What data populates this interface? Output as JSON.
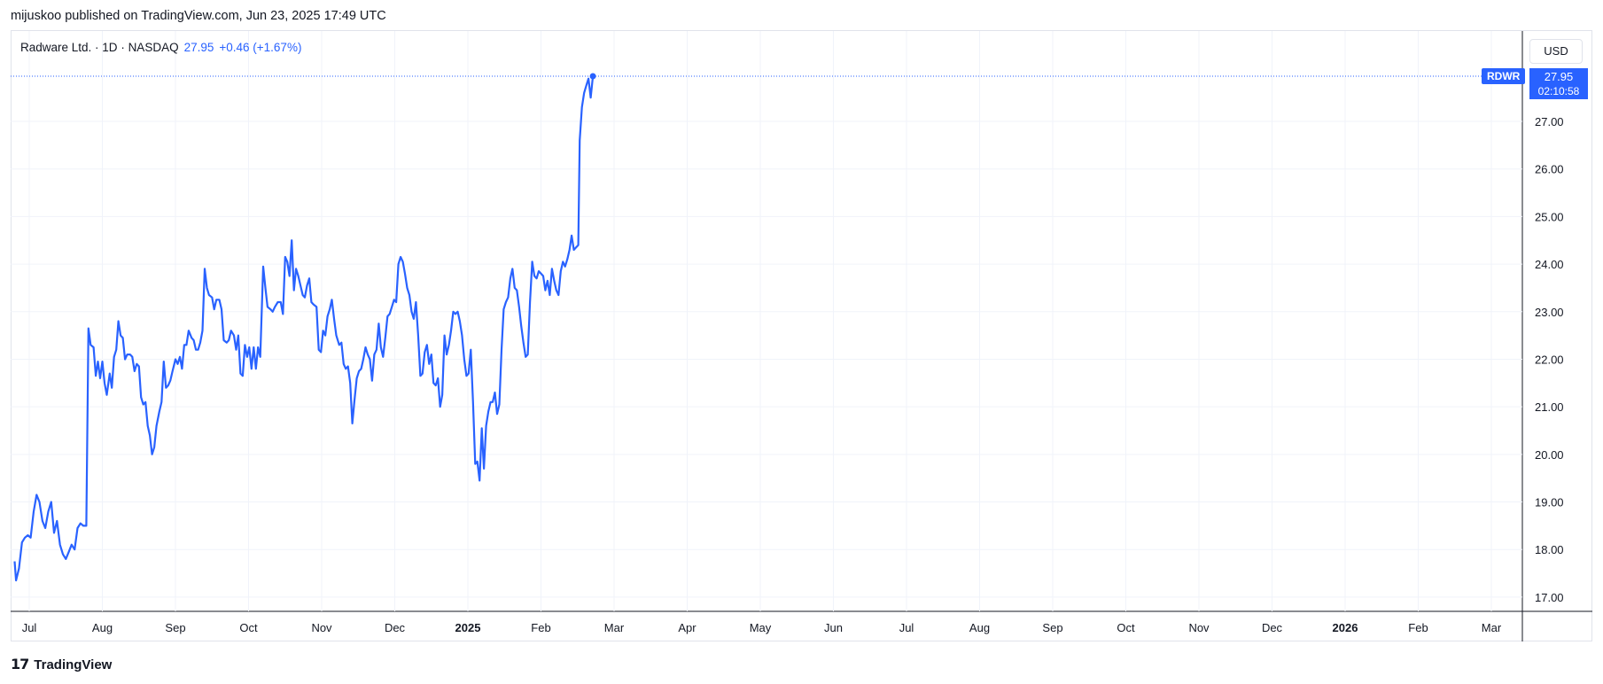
{
  "header": {
    "publisher_line": "mijuskoo published on TradingView.com, Jun 23, 2025 17:49 UTC"
  },
  "legend": {
    "name": "Radware Ltd.",
    "separator1": " · ",
    "interval": "1D",
    "separator2": " · ",
    "exchange": "NASDAQ",
    "last": "27.95",
    "change": "+0.46 (+1.67%)"
  },
  "price_scale": {
    "currency": "USD",
    "symbol_badge": "RDWR",
    "countdown": "02:10:58"
  },
  "footer": {
    "brand": "TradingView"
  },
  "colors": {
    "line": "#2962ff",
    "grid": "#f0f3fa",
    "axis_text": "#131722"
  },
  "chart_data": {
    "type": "line",
    "title": "Radware Ltd. · 1D · NASDAQ",
    "ylim": [
      16.7,
      28.9
    ],
    "y_ticks": [
      "17.00",
      "18.00",
      "19.00",
      "20.00",
      "21.00",
      "22.00",
      "23.00",
      "24.00",
      "25.00",
      "26.00",
      "27.00"
    ],
    "x_ticks": [
      {
        "label": "Jul",
        "t": 0.0
      },
      {
        "label": "Aug",
        "t": 1.0
      },
      {
        "label": "Sep",
        "t": 2.0
      },
      {
        "label": "Oct",
        "t": 3.0
      },
      {
        "label": "Nov",
        "t": 4.0
      },
      {
        "label": "Dec",
        "t": 5.0
      },
      {
        "label": "2025",
        "t": 6.0,
        "bold": true
      },
      {
        "label": "Feb",
        "t": 7.0
      },
      {
        "label": "Mar",
        "t": 8.0
      },
      {
        "label": "Apr",
        "t": 9.0
      },
      {
        "label": "May",
        "t": 10.0
      },
      {
        "label": "Jun",
        "t": 11.0
      },
      {
        "label": "Jul",
        "t": 12.0
      },
      {
        "label": "Aug",
        "t": 13.0
      },
      {
        "label": "Sep",
        "t": 14.0
      },
      {
        "label": "Oct",
        "t": 15.0
      },
      {
        "label": "Nov",
        "t": 16.0
      },
      {
        "label": "Dec",
        "t": 17.0
      },
      {
        "label": "2026",
        "t": 18.0,
        "bold": true
      },
      {
        "label": "Feb",
        "t": 19.0
      },
      {
        "label": "Mar",
        "t": 20.0
      }
    ],
    "series": [
      {
        "values": [
          [
            -0.2,
            17.75
          ],
          [
            -0.18,
            17.35
          ],
          [
            -0.14,
            17.6
          ],
          [
            -0.1,
            18.15
          ],
          [
            -0.06,
            18.25
          ],
          [
            -0.02,
            18.3
          ],
          [
            0.02,
            18.25
          ],
          [
            0.06,
            18.8
          ],
          [
            0.1,
            19.15
          ],
          [
            0.14,
            19.0
          ],
          [
            0.18,
            18.6
          ],
          [
            0.22,
            18.45
          ],
          [
            0.26,
            18.8
          ],
          [
            0.3,
            19.0
          ],
          [
            0.34,
            18.35
          ],
          [
            0.38,
            18.6
          ],
          [
            0.42,
            18.1
          ],
          [
            0.46,
            17.9
          ],
          [
            0.5,
            17.8
          ],
          [
            0.54,
            17.95
          ],
          [
            0.58,
            18.1
          ],
          [
            0.62,
            18.0
          ],
          [
            0.66,
            18.45
          ],
          [
            0.7,
            18.55
          ],
          [
            0.74,
            18.5
          ],
          [
            0.78,
            18.5
          ],
          [
            0.81,
            22.65
          ],
          [
            0.84,
            22.3
          ],
          [
            0.88,
            22.25
          ],
          [
            0.91,
            21.65
          ],
          [
            0.94,
            21.95
          ],
          [
            0.97,
            21.6
          ],
          [
            1.0,
            21.95
          ],
          [
            1.03,
            21.5
          ],
          [
            1.06,
            21.25
          ],
          [
            1.1,
            21.7
          ],
          [
            1.13,
            21.4
          ],
          [
            1.16,
            22.05
          ],
          [
            1.19,
            22.2
          ],
          [
            1.22,
            22.8
          ],
          [
            1.25,
            22.5
          ],
          [
            1.28,
            22.45
          ],
          [
            1.31,
            22.0
          ],
          [
            1.34,
            22.1
          ],
          [
            1.38,
            22.1
          ],
          [
            1.41,
            22.05
          ],
          [
            1.44,
            21.75
          ],
          [
            1.47,
            21.9
          ],
          [
            1.5,
            21.85
          ],
          [
            1.53,
            21.2
          ],
          [
            1.56,
            21.05
          ],
          [
            1.59,
            21.1
          ],
          [
            1.62,
            20.6
          ],
          [
            1.65,
            20.4
          ],
          [
            1.68,
            20.0
          ],
          [
            1.71,
            20.15
          ],
          [
            1.74,
            20.6
          ],
          [
            1.78,
            20.9
          ],
          [
            1.81,
            21.1
          ],
          [
            1.84,
            21.95
          ],
          [
            1.87,
            21.4
          ],
          [
            1.9,
            21.45
          ],
          [
            1.93,
            21.55
          ],
          [
            1.96,
            21.75
          ],
          [
            2.0,
            22.0
          ],
          [
            2.03,
            21.9
          ],
          [
            2.06,
            22.05
          ],
          [
            2.09,
            21.8
          ],
          [
            2.12,
            22.3
          ],
          [
            2.15,
            22.3
          ],
          [
            2.18,
            22.6
          ],
          [
            2.22,
            22.45
          ],
          [
            2.25,
            22.4
          ],
          [
            2.28,
            22.2
          ],
          [
            2.31,
            22.2
          ],
          [
            2.34,
            22.35
          ],
          [
            2.37,
            22.6
          ],
          [
            2.4,
            23.9
          ],
          [
            2.43,
            23.5
          ],
          [
            2.46,
            23.35
          ],
          [
            2.5,
            23.3
          ],
          [
            2.53,
            23.05
          ],
          [
            2.56,
            23.25
          ],
          [
            2.6,
            23.25
          ],
          [
            2.63,
            23.05
          ],
          [
            2.66,
            22.4
          ],
          [
            2.7,
            22.35
          ],
          [
            2.73,
            22.4
          ],
          [
            2.76,
            22.6
          ],
          [
            2.8,
            22.5
          ],
          [
            2.83,
            22.2
          ],
          [
            2.86,
            22.5
          ],
          [
            2.89,
            21.7
          ],
          [
            2.92,
            21.65
          ],
          [
            2.95,
            22.3
          ],
          [
            2.98,
            22.05
          ],
          [
            3.01,
            22.25
          ],
          [
            3.04,
            21.8
          ],
          [
            3.07,
            22.25
          ],
          [
            3.1,
            21.8
          ],
          [
            3.13,
            22.25
          ],
          [
            3.16,
            22.05
          ],
          [
            3.2,
            23.95
          ],
          [
            3.23,
            23.5
          ],
          [
            3.26,
            23.1
          ],
          [
            3.3,
            23.05
          ],
          [
            3.33,
            23.0
          ],
          [
            3.36,
            23.1
          ],
          [
            3.4,
            23.2
          ],
          [
            3.44,
            23.2
          ],
          [
            3.47,
            22.95
          ],
          [
            3.5,
            24.15
          ],
          [
            3.53,
            24.05
          ],
          [
            3.56,
            23.75
          ],
          [
            3.59,
            24.5
          ],
          [
            3.62,
            23.45
          ],
          [
            3.65,
            23.9
          ],
          [
            3.68,
            23.75
          ],
          [
            3.71,
            23.55
          ],
          [
            3.74,
            23.35
          ],
          [
            3.77,
            23.3
          ],
          [
            3.8,
            23.55
          ],
          [
            3.83,
            23.7
          ],
          [
            3.86,
            23.2
          ],
          [
            3.89,
            23.15
          ],
          [
            3.93,
            23.1
          ],
          [
            3.96,
            22.2
          ],
          [
            3.99,
            22.15
          ],
          [
            4.02,
            22.6
          ],
          [
            4.05,
            22.5
          ],
          [
            4.08,
            22.9
          ],
          [
            4.11,
            23.05
          ],
          [
            4.14,
            23.25
          ],
          [
            4.17,
            22.85
          ],
          [
            4.2,
            22.5
          ],
          [
            4.24,
            22.3
          ],
          [
            4.27,
            22.35
          ],
          [
            4.3,
            21.9
          ],
          [
            4.33,
            21.8
          ],
          [
            4.36,
            21.85
          ],
          [
            4.39,
            21.5
          ],
          [
            4.42,
            20.65
          ],
          [
            4.45,
            21.15
          ],
          [
            4.48,
            21.6
          ],
          [
            4.51,
            21.75
          ],
          [
            4.54,
            21.8
          ],
          [
            4.57,
            22.0
          ],
          [
            4.6,
            22.25
          ],
          [
            4.63,
            22.1
          ],
          [
            4.66,
            22.0
          ],
          [
            4.69,
            21.55
          ],
          [
            4.72,
            22.1
          ],
          [
            4.75,
            22.2
          ],
          [
            4.78,
            22.75
          ],
          [
            4.81,
            22.25
          ],
          [
            4.84,
            22.05
          ],
          [
            4.87,
            22.45
          ],
          [
            4.9,
            22.9
          ],
          [
            4.93,
            22.95
          ],
          [
            4.96,
            23.1
          ],
          [
            4.99,
            23.25
          ],
          [
            5.02,
            23.2
          ],
          [
            5.05,
            24.0
          ],
          [
            5.08,
            24.15
          ],
          [
            5.11,
            24.05
          ],
          [
            5.14,
            23.8
          ],
          [
            5.17,
            23.5
          ],
          [
            5.2,
            23.35
          ],
          [
            5.23,
            23.0
          ],
          [
            5.26,
            22.85
          ],
          [
            5.29,
            23.2
          ],
          [
            5.32,
            22.5
          ],
          [
            5.35,
            21.65
          ],
          [
            5.38,
            21.7
          ],
          [
            5.41,
            22.15
          ],
          [
            5.44,
            22.3
          ],
          [
            5.47,
            21.9
          ],
          [
            5.5,
            22.1
          ],
          [
            5.53,
            21.5
          ],
          [
            5.56,
            21.45
          ],
          [
            5.59,
            21.6
          ],
          [
            5.62,
            21.0
          ],
          [
            5.65,
            21.25
          ],
          [
            5.68,
            22.5
          ],
          [
            5.71,
            22.1
          ],
          [
            5.74,
            22.3
          ],
          [
            5.77,
            22.6
          ],
          [
            5.8,
            23.0
          ],
          [
            5.83,
            22.95
          ],
          [
            5.86,
            23.0
          ],
          [
            5.89,
            22.8
          ],
          [
            5.92,
            22.5
          ],
          [
            5.95,
            22.0
          ],
          [
            5.98,
            21.65
          ],
          [
            6.01,
            21.7
          ],
          [
            6.04,
            22.2
          ],
          [
            6.07,
            21.1
          ],
          [
            6.1,
            19.8
          ],
          [
            6.13,
            19.85
          ],
          [
            6.16,
            19.45
          ],
          [
            6.19,
            20.55
          ],
          [
            6.22,
            19.7
          ],
          [
            6.25,
            20.6
          ],
          [
            6.28,
            20.9
          ],
          [
            6.31,
            21.1
          ],
          [
            6.34,
            21.1
          ],
          [
            6.37,
            21.3
          ],
          [
            6.4,
            20.85
          ],
          [
            6.43,
            21.05
          ],
          [
            6.46,
            22.2
          ],
          [
            6.49,
            23.05
          ],
          [
            6.52,
            23.2
          ],
          [
            6.55,
            23.3
          ],
          [
            6.58,
            23.7
          ],
          [
            6.61,
            23.9
          ],
          [
            6.64,
            23.5
          ],
          [
            6.67,
            23.45
          ],
          [
            6.7,
            23.1
          ],
          [
            6.73,
            22.7
          ],
          [
            6.76,
            22.35
          ],
          [
            6.79,
            22.05
          ],
          [
            6.82,
            22.1
          ],
          [
            6.85,
            23.2
          ],
          [
            6.88,
            24.05
          ],
          [
            6.91,
            23.75
          ],
          [
            6.94,
            23.7
          ],
          [
            6.97,
            23.85
          ],
          [
            7.0,
            23.8
          ],
          [
            7.03,
            23.75
          ],
          [
            7.06,
            23.45
          ],
          [
            7.09,
            23.65
          ],
          [
            7.12,
            23.35
          ],
          [
            7.15,
            23.9
          ],
          [
            7.18,
            23.65
          ],
          [
            7.21,
            23.45
          ],
          [
            7.24,
            23.35
          ],
          [
            7.27,
            23.85
          ],
          [
            7.3,
            24.05
          ],
          [
            7.33,
            23.95
          ],
          [
            7.36,
            24.1
          ],
          [
            7.39,
            24.3
          ],
          [
            7.42,
            24.6
          ],
          [
            7.45,
            24.3
          ],
          [
            7.48,
            24.35
          ],
          [
            7.51,
            24.4
          ],
          [
            7.53,
            26.6
          ],
          [
            7.56,
            27.3
          ],
          [
            7.59,
            27.6
          ],
          [
            7.62,
            27.75
          ],
          [
            7.65,
            27.9
          ],
          [
            7.68,
            27.5
          ],
          [
            7.71,
            27.95
          ]
        ]
      }
    ],
    "last_point": 27.95
  }
}
